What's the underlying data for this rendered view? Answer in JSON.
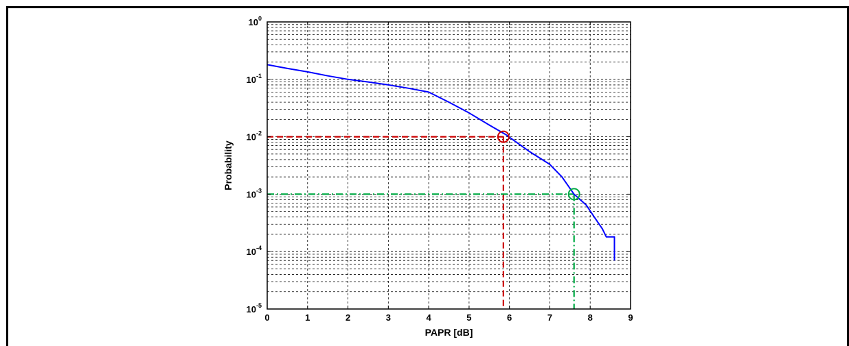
{
  "chart_data": {
    "type": "line",
    "title": "",
    "xlabel": "PAPR [dB]",
    "ylabel": "Probability",
    "xlim": [
      0,
      9
    ],
    "ylim": [
      1e-05,
      1
    ],
    "yscale": "log",
    "grid": true,
    "x_ticks": [
      "0",
      "1",
      "2",
      "3",
      "4",
      "5",
      "6",
      "7",
      "8",
      "9"
    ],
    "y_ticks": [
      {
        "base": "10",
        "exp": "0",
        "value": 1
      },
      {
        "base": "10",
        "exp": "-1",
        "value": 0.1
      },
      {
        "base": "10",
        "exp": "-2",
        "value": 0.01
      },
      {
        "base": "10",
        "exp": "-3",
        "value": 0.001
      },
      {
        "base": "10",
        "exp": "-4",
        "value": 0.0001
      },
      {
        "base": "10",
        "exp": "-5",
        "value": 1e-05
      }
    ],
    "series": [
      {
        "color": "#0000ff",
        "x": [
          0,
          0.5,
          1,
          1.5,
          2,
          2.5,
          3,
          3.5,
          4,
          4.5,
          5,
          5.5,
          5.9,
          6.5,
          7,
          7.3,
          7.6,
          7.9,
          8.1,
          8.3,
          8.4,
          8.5,
          8.6,
          8.6
        ],
        "y": [
          0.18,
          0.155,
          0.135,
          0.115,
          0.1,
          0.09,
          0.08,
          0.07,
          0.06,
          0.04,
          0.026,
          0.016,
          0.011,
          0.0055,
          0.0033,
          0.002,
          0.001,
          0.00065,
          0.0004,
          0.00025,
          0.00018,
          0.00018,
          0.00018,
          7e-05
        ]
      }
    ],
    "annotations": [
      {
        "x": 5.85,
        "y": 0.01,
        "color": "#cc0000",
        "style": "dashed"
      },
      {
        "x": 7.6,
        "y": 0.001,
        "color": "#00aa44",
        "style": "dash-dot"
      }
    ]
  }
}
